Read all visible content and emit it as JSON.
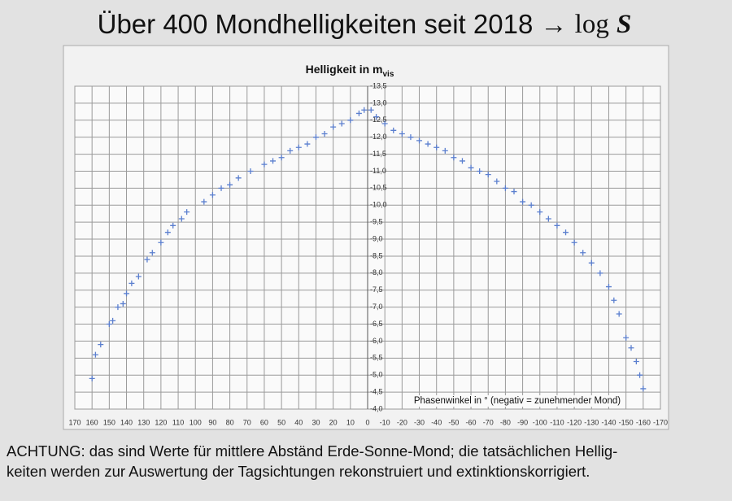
{
  "heading": {
    "text": "Über 400 Mondhelligkeiten seit 2018 →",
    "log": "log",
    "symbol": "S"
  },
  "chart_data": {
    "type": "scatter",
    "title": "Helligkeit in m",
    "title_subscript": "vis",
    "x_label": "Phasenwinkel in ° (negativ = zunehmender Mond)",
    "color": "#5b7fcf",
    "grid": true,
    "xlim": [
      170,
      -170
    ],
    "xticks": [
      170,
      160,
      150,
      140,
      130,
      120,
      110,
      100,
      90,
      80,
      70,
      60,
      50,
      40,
      30,
      20,
      10,
      0,
      -10,
      -20,
      -30,
      -40,
      -50,
      -60,
      -70,
      -80,
      -90,
      -100,
      -110,
      -120,
      -130,
      -140,
      -150,
      -160,
      -170
    ],
    "ylim": [
      -4.0,
      -13.5
    ],
    "yticks": [
      {
        "value": -4.0,
        "label": "-4,0"
      },
      {
        "value": -4.5,
        "label": "-4,5"
      },
      {
        "value": -5.0,
        "label": "-5,0"
      },
      {
        "value": -5.5,
        "label": "-5,5"
      },
      {
        "value": -6.0,
        "label": "-6,0"
      },
      {
        "value": -6.5,
        "label": "-6,5"
      },
      {
        "value": -7.0,
        "label": "-7,0"
      },
      {
        "value": -7.5,
        "label": "-7,5"
      },
      {
        "value": -8.0,
        "label": "-8,0"
      },
      {
        "value": -8.5,
        "label": "-8,5"
      },
      {
        "value": -9.0,
        "label": "-9,0"
      },
      {
        "value": -9.5,
        "label": "-9,5"
      },
      {
        "value": -10.0,
        "label": "-10,0"
      },
      {
        "value": -10.5,
        "label": "-10,5"
      },
      {
        "value": -11.0,
        "label": "-11,0"
      },
      {
        "value": -11.5,
        "label": "-11,5"
      },
      {
        "value": -12.0,
        "label": "-12,0"
      },
      {
        "value": -12.5,
        "label": "-12,5"
      },
      {
        "value": -13.0,
        "label": "-13,0"
      },
      {
        "value": -13.5,
        "label": "-13,5"
      }
    ],
    "x": [
      160,
      158,
      155,
      150,
      148,
      145,
      142,
      140,
      137,
      133,
      128,
      125,
      120,
      116,
      113,
      108,
      105,
      95,
      90,
      85,
      80,
      75,
      68,
      60,
      55,
      50,
      45,
      40,
      35,
      30,
      25,
      20,
      15,
      10,
      5,
      2,
      -2,
      -5,
      -10,
      -15,
      -20,
      -25,
      -30,
      -35,
      -40,
      -45,
      -50,
      -55,
      -60,
      -65,
      -70,
      -75,
      -80,
      -85,
      -90,
      -95,
      -100,
      -105,
      -110,
      -115,
      -120,
      -125,
      -130,
      -135,
      -140,
      -143,
      -146,
      -150,
      -153,
      -156,
      -158,
      -160
    ],
    "values": [
      -4.9,
      -5.6,
      -5.9,
      -6.5,
      -6.6,
      -7.0,
      -7.1,
      -7.4,
      -7.7,
      -7.9,
      -8.4,
      -8.6,
      -8.9,
      -9.2,
      -9.4,
      -9.6,
      -9.8,
      -10.1,
      -10.3,
      -10.5,
      -10.6,
      -10.8,
      -11.0,
      -11.2,
      -11.3,
      -11.4,
      -11.6,
      -11.7,
      -11.8,
      -12.0,
      -12.1,
      -12.3,
      -12.4,
      -12.5,
      -12.7,
      -12.8,
      -12.8,
      -12.6,
      -12.4,
      -12.2,
      -12.1,
      -12.0,
      -11.9,
      -11.8,
      -11.7,
      -11.6,
      -11.4,
      -11.3,
      -11.1,
      -11.0,
      -10.9,
      -10.7,
      -10.5,
      -10.4,
      -10.1,
      -10.0,
      -9.8,
      -9.6,
      -9.4,
      -9.2,
      -8.9,
      -8.6,
      -8.3,
      -8.0,
      -7.6,
      -7.2,
      -6.8,
      -6.1,
      -5.8,
      -5.4,
      -5.0,
      -4.6
    ]
  },
  "footer": {
    "lines": [
      "ACHTUNG: das sind Werte für mittlere Abständ Erde-Sonne-Mond; die tatsächlichen Hellig-",
      "keiten werden zur Auswertung der Tagsichtungen rekonstruiert und extinktionskorrigiert."
    ]
  }
}
